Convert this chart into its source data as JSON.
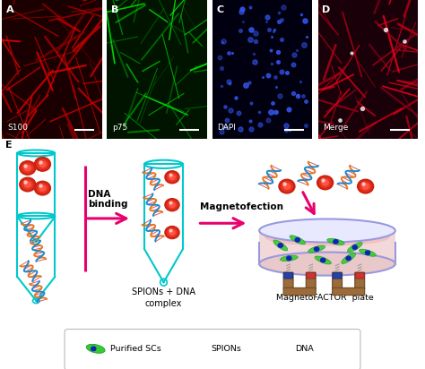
{
  "fig_width": 4.74,
  "fig_height": 4.12,
  "dpi": 100,
  "background_color": "#ffffff",
  "panel_labels": [
    "A",
    "B",
    "C",
    "D",
    "E"
  ],
  "microscopy_labels": [
    "S100",
    "p75",
    "DAPI",
    "Merge"
  ],
  "arrow_color": "#e8006e",
  "cyan_color": "#00c8cc",
  "dna_binding_text": "DNA\nbinding",
  "magnetofection_text": "Magnetofection",
  "spions_dna_text": "SPIONs + DNA\ncomplex",
  "magnetofactor_text": "MagnetoFACTOR  plate",
  "legend_labels": [
    "Purified SCs",
    "SPIONs",
    "DNA"
  ]
}
